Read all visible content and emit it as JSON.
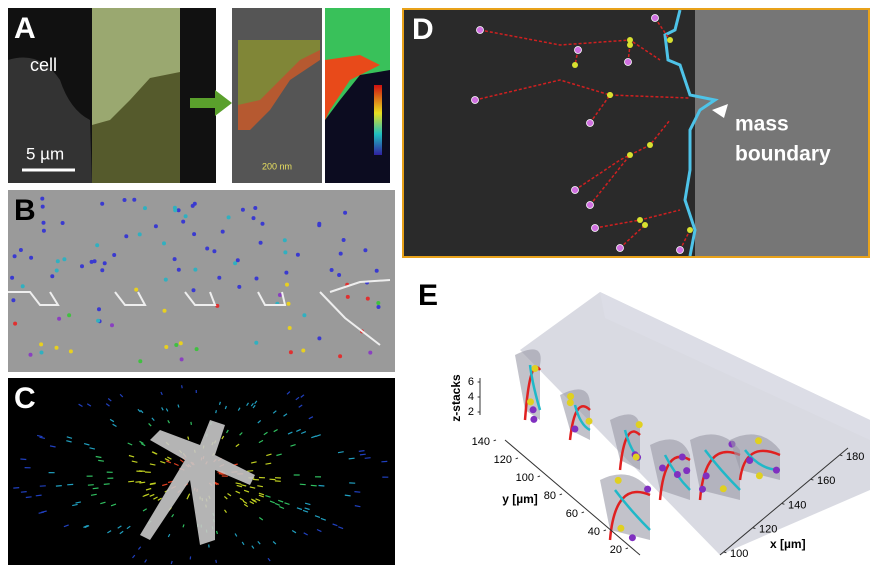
{
  "panel_a": {
    "label": "A",
    "cell_label": "cell",
    "scale_bar": "5 µm",
    "inset_scale_bar": "200 nm"
  },
  "panel_b": {
    "label": "B"
  },
  "panel_c": {
    "label": "C"
  },
  "panel_d": {
    "label": "D",
    "annotation": [
      "mass",
      "boundary"
    ]
  },
  "panel_e": {
    "label": "E",
    "z_label": "z-stacks",
    "y_label": "y [µm]",
    "x_label": "x [µm]",
    "z_ticks": [
      2,
      4,
      6
    ],
    "y_ticks": [
      20,
      40,
      60,
      80,
      100,
      120,
      140
    ],
    "x_ticks": [
      100,
      120,
      140,
      160,
      180
    ]
  }
}
